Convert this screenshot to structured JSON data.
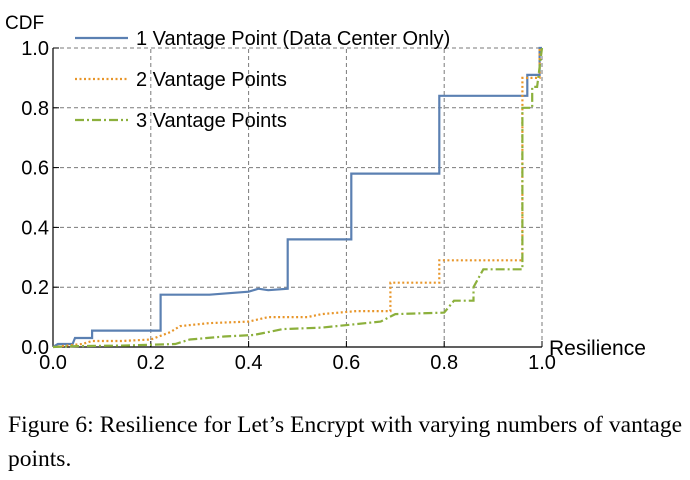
{
  "caption": "Figure 6: Resilience for Let’s Encrypt with varying numbers of vantage points.",
  "chart_data": {
    "type": "line",
    "subtype": "step",
    "ylabel": "CDF",
    "xlabel": "Resilience",
    "xlim": [
      0.0,
      1.0
    ],
    "ylim": [
      0.0,
      1.0
    ],
    "xticks": [
      "0.0",
      "0.2",
      "0.4",
      "0.6",
      "0.8",
      "1.0"
    ],
    "yticks": [
      "0.0",
      "0.2",
      "0.4",
      "0.6",
      "0.8",
      "1.0"
    ],
    "grid": true,
    "legend_position": "top-left",
    "series": [
      {
        "name": "1 Vantage Point (Data Center Only)",
        "color": "#5b80b2",
        "dash": "solid",
        "points": [
          [
            0.0,
            0.0
          ],
          [
            0.01,
            0.01
          ],
          [
            0.04,
            0.01
          ],
          [
            0.045,
            0.03
          ],
          [
            0.08,
            0.03
          ],
          [
            0.08,
            0.055
          ],
          [
            0.22,
            0.055
          ],
          [
            0.22,
            0.175
          ],
          [
            0.32,
            0.175
          ],
          [
            0.36,
            0.18
          ],
          [
            0.4,
            0.185
          ],
          [
            0.42,
            0.195
          ],
          [
            0.44,
            0.19
          ],
          [
            0.48,
            0.195
          ],
          [
            0.48,
            0.36
          ],
          [
            0.61,
            0.36
          ],
          [
            0.61,
            0.58
          ],
          [
            0.79,
            0.58
          ],
          [
            0.79,
            0.84
          ],
          [
            0.97,
            0.84
          ],
          [
            0.97,
            0.91
          ],
          [
            0.995,
            0.91
          ],
          [
            0.995,
            1.0
          ],
          [
            1.0,
            1.0
          ]
        ]
      },
      {
        "name": "2 Vantage Points",
        "color": "#e8962a",
        "dash": "dotted",
        "points": [
          [
            0.0,
            0.0
          ],
          [
            0.03,
            0.005
          ],
          [
            0.06,
            0.01
          ],
          [
            0.08,
            0.02
          ],
          [
            0.14,
            0.02
          ],
          [
            0.2,
            0.025
          ],
          [
            0.24,
            0.05
          ],
          [
            0.26,
            0.07
          ],
          [
            0.32,
            0.08
          ],
          [
            0.4,
            0.085
          ],
          [
            0.44,
            0.1
          ],
          [
            0.52,
            0.1
          ],
          [
            0.55,
            0.11
          ],
          [
            0.62,
            0.12
          ],
          [
            0.69,
            0.12
          ],
          [
            0.69,
            0.215
          ],
          [
            0.79,
            0.215
          ],
          [
            0.79,
            0.29
          ],
          [
            0.96,
            0.29
          ],
          [
            0.96,
            0.9
          ],
          [
            0.995,
            0.9
          ],
          [
            0.995,
            1.0
          ]
        ]
      },
      {
        "name": "3 Vantage Points",
        "color": "#8cb03c",
        "dash": "dashdot",
        "points": [
          [
            0.0,
            0.0
          ],
          [
            0.05,
            0.003
          ],
          [
            0.15,
            0.005
          ],
          [
            0.25,
            0.01
          ],
          [
            0.28,
            0.025
          ],
          [
            0.35,
            0.035
          ],
          [
            0.41,
            0.04
          ],
          [
            0.44,
            0.05
          ],
          [
            0.47,
            0.06
          ],
          [
            0.55,
            0.065
          ],
          [
            0.58,
            0.07
          ],
          [
            0.67,
            0.085
          ],
          [
            0.7,
            0.11
          ],
          [
            0.8,
            0.115
          ],
          [
            0.82,
            0.155
          ],
          [
            0.86,
            0.155
          ],
          [
            0.86,
            0.2
          ],
          [
            0.88,
            0.26
          ],
          [
            0.96,
            0.26
          ],
          [
            0.96,
            0.8
          ],
          [
            0.98,
            0.8
          ],
          [
            0.98,
            0.87
          ],
          [
            0.99,
            0.87
          ],
          [
            1.0,
            1.0
          ]
        ]
      }
    ]
  }
}
